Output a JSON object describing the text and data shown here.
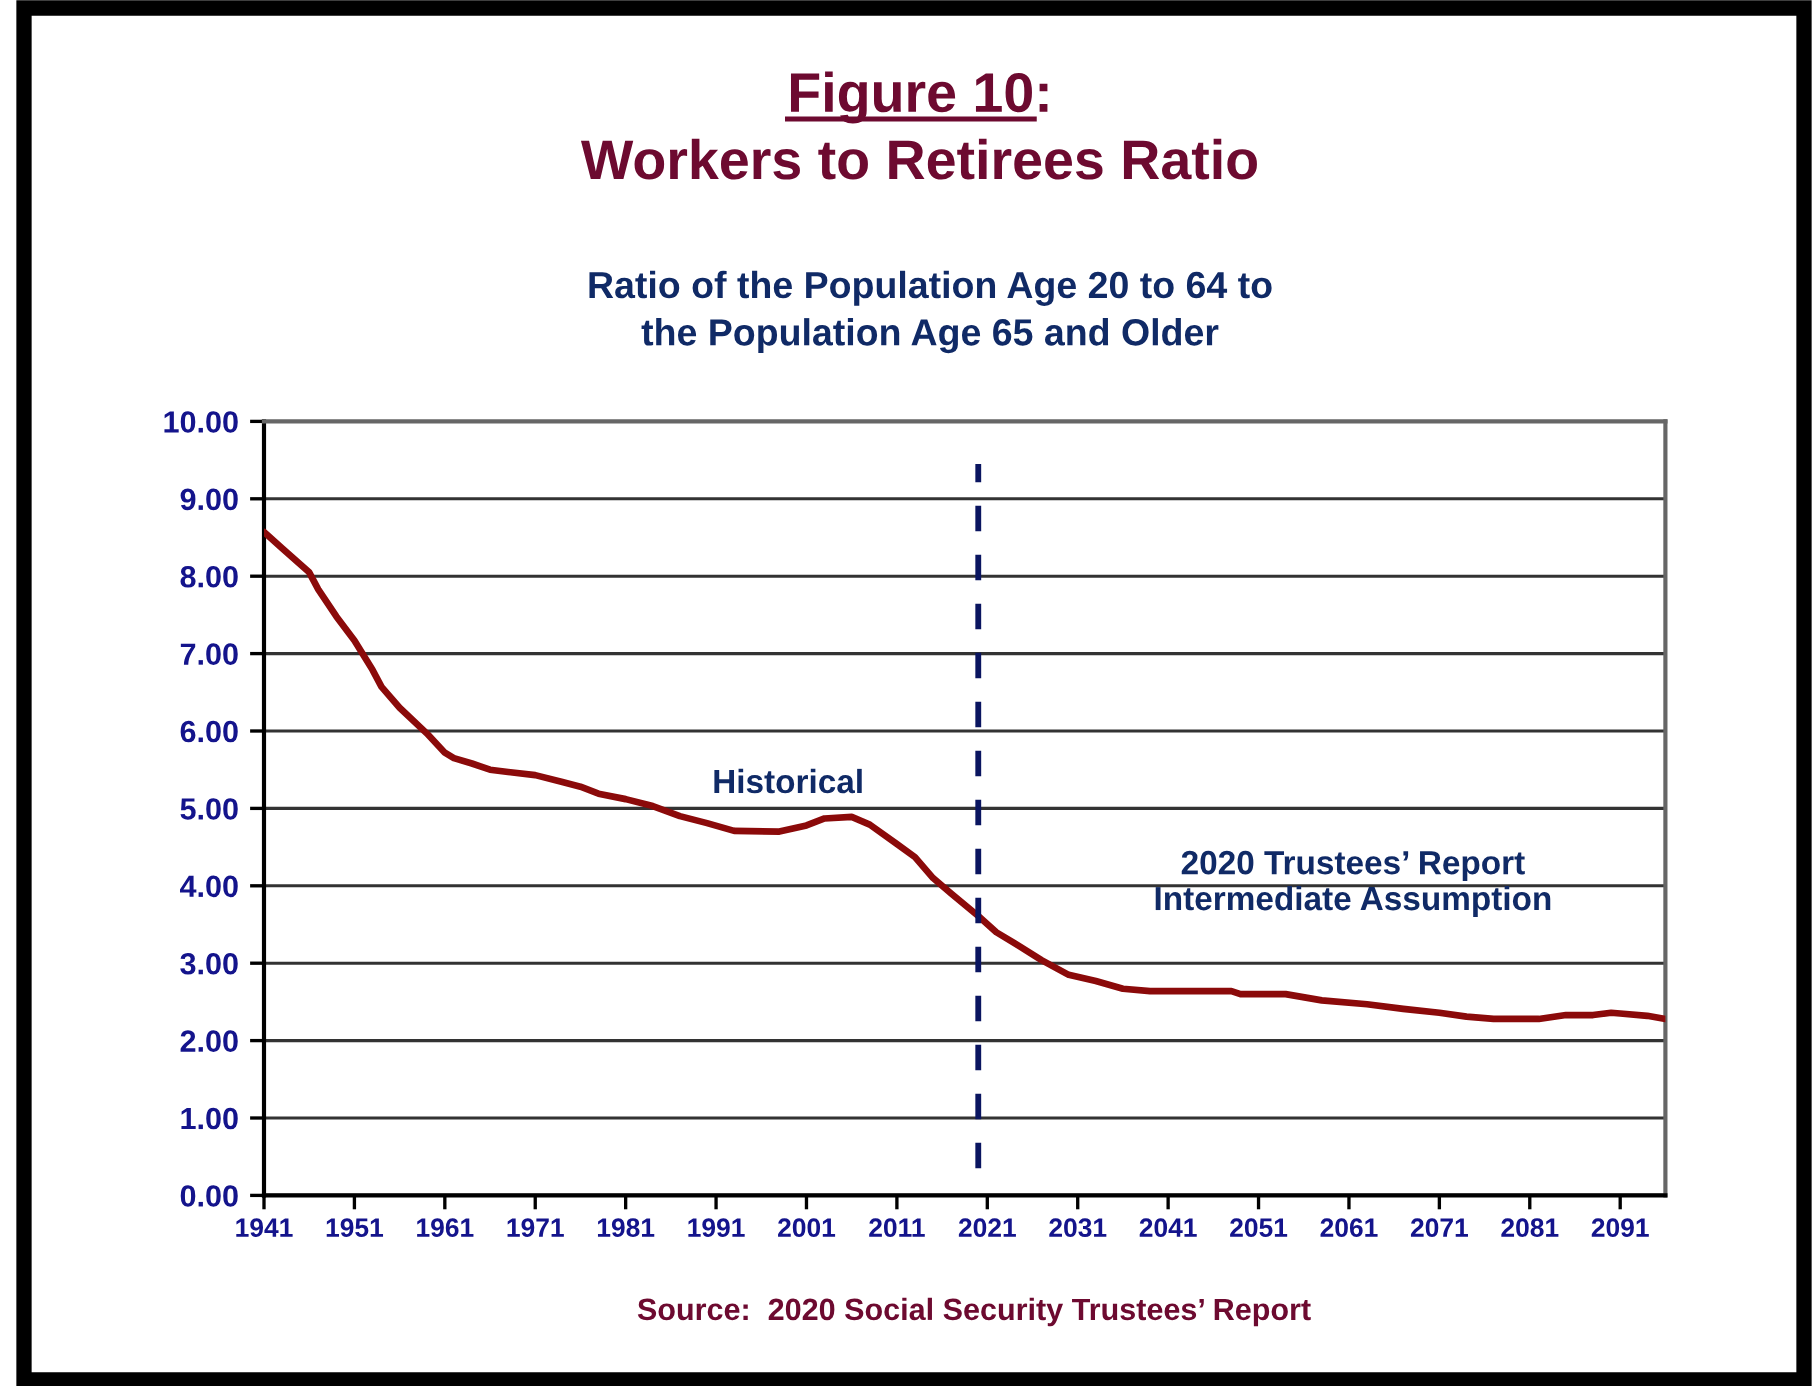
{
  "chart_data": {
    "type": "line",
    "title": "Figure 10:\nWorkers to Retirees Ratio",
    "subtitle": "Ratio of the Population Age 20 to 64 to\nthe Population Age 65 and Older",
    "x": [
      1941,
      1943,
      1946,
      1947,
      1949,
      1951,
      1953,
      1954,
      1956,
      1959,
      1961,
      1962,
      1964,
      1966,
      1968,
      1971,
      1974,
      1976,
      1978,
      1981,
      1984,
      1987,
      1990,
      1993,
      1998,
      2001,
      2003,
      2006,
      2008,
      2011,
      2013,
      2015,
      2017,
      2020,
      2022,
      2024,
      2027,
      2030,
      2033,
      2036,
      2039,
      2048,
      2049,
      2054,
      2058,
      2063,
      2067,
      2071,
      2074,
      2077,
      2082,
      2085,
      2088,
      2090,
      2091,
      2094,
      2096
    ],
    "series": [
      {
        "color": "#8b0a0a",
        "values": [
          8.57,
          8.36,
          8.05,
          7.83,
          7.48,
          7.17,
          6.79,
          6.57,
          6.3,
          5.97,
          5.72,
          5.65,
          5.58,
          5.5,
          5.47,
          5.43,
          5.34,
          5.28,
          5.19,
          5.12,
          5.03,
          4.9,
          4.81,
          4.71,
          4.7,
          4.78,
          4.87,
          4.89,
          4.79,
          4.54,
          4.37,
          4.1,
          3.9,
          3.61,
          3.4,
          3.26,
          3.04,
          2.85,
          2.77,
          2.67,
          2.64,
          2.64,
          2.6,
          2.6,
          2.52,
          2.47,
          2.41,
          2.36,
          2.31,
          2.28,
          2.28,
          2.33,
          2.33,
          2.36,
          2.35,
          2.32,
          2.28
        ]
      }
    ],
    "xlim": [
      1941,
      2096
    ],
    "xticks": [
      1941,
      1951,
      1961,
      1971,
      1981,
      1991,
      2001,
      2011,
      2021,
      2031,
      2041,
      2051,
      2061,
      2071,
      2081,
      2091
    ],
    "ylim": [
      0,
      10
    ],
    "yticks": [
      {
        "value": 0,
        "label": "0.00"
      },
      {
        "value": 1,
        "label": "1.00"
      },
      {
        "value": 2,
        "label": "2.00"
      },
      {
        "value": 3,
        "label": "3.00"
      },
      {
        "value": 4,
        "label": "4.00"
      },
      {
        "value": 5,
        "label": "5.00"
      },
      {
        "value": 6,
        "label": "6.00"
      },
      {
        "value": 7,
        "label": "7.00"
      },
      {
        "value": 8,
        "label": "8.00"
      },
      {
        "value": 9,
        "label": "9.00"
      },
      {
        "value": 10,
        "label": "10.00"
      }
    ],
    "grid": "y",
    "ref_lines": [
      {
        "axis": "x",
        "value": 2020,
        "color": "#0a1560",
        "line_style": "dashed"
      }
    ],
    "annotations": [
      "Historical",
      "2020 Trustees’ Report\nIntermediate Assumption",
      "Source:  2020 Social Security Trustees’ Report"
    ]
  }
}
